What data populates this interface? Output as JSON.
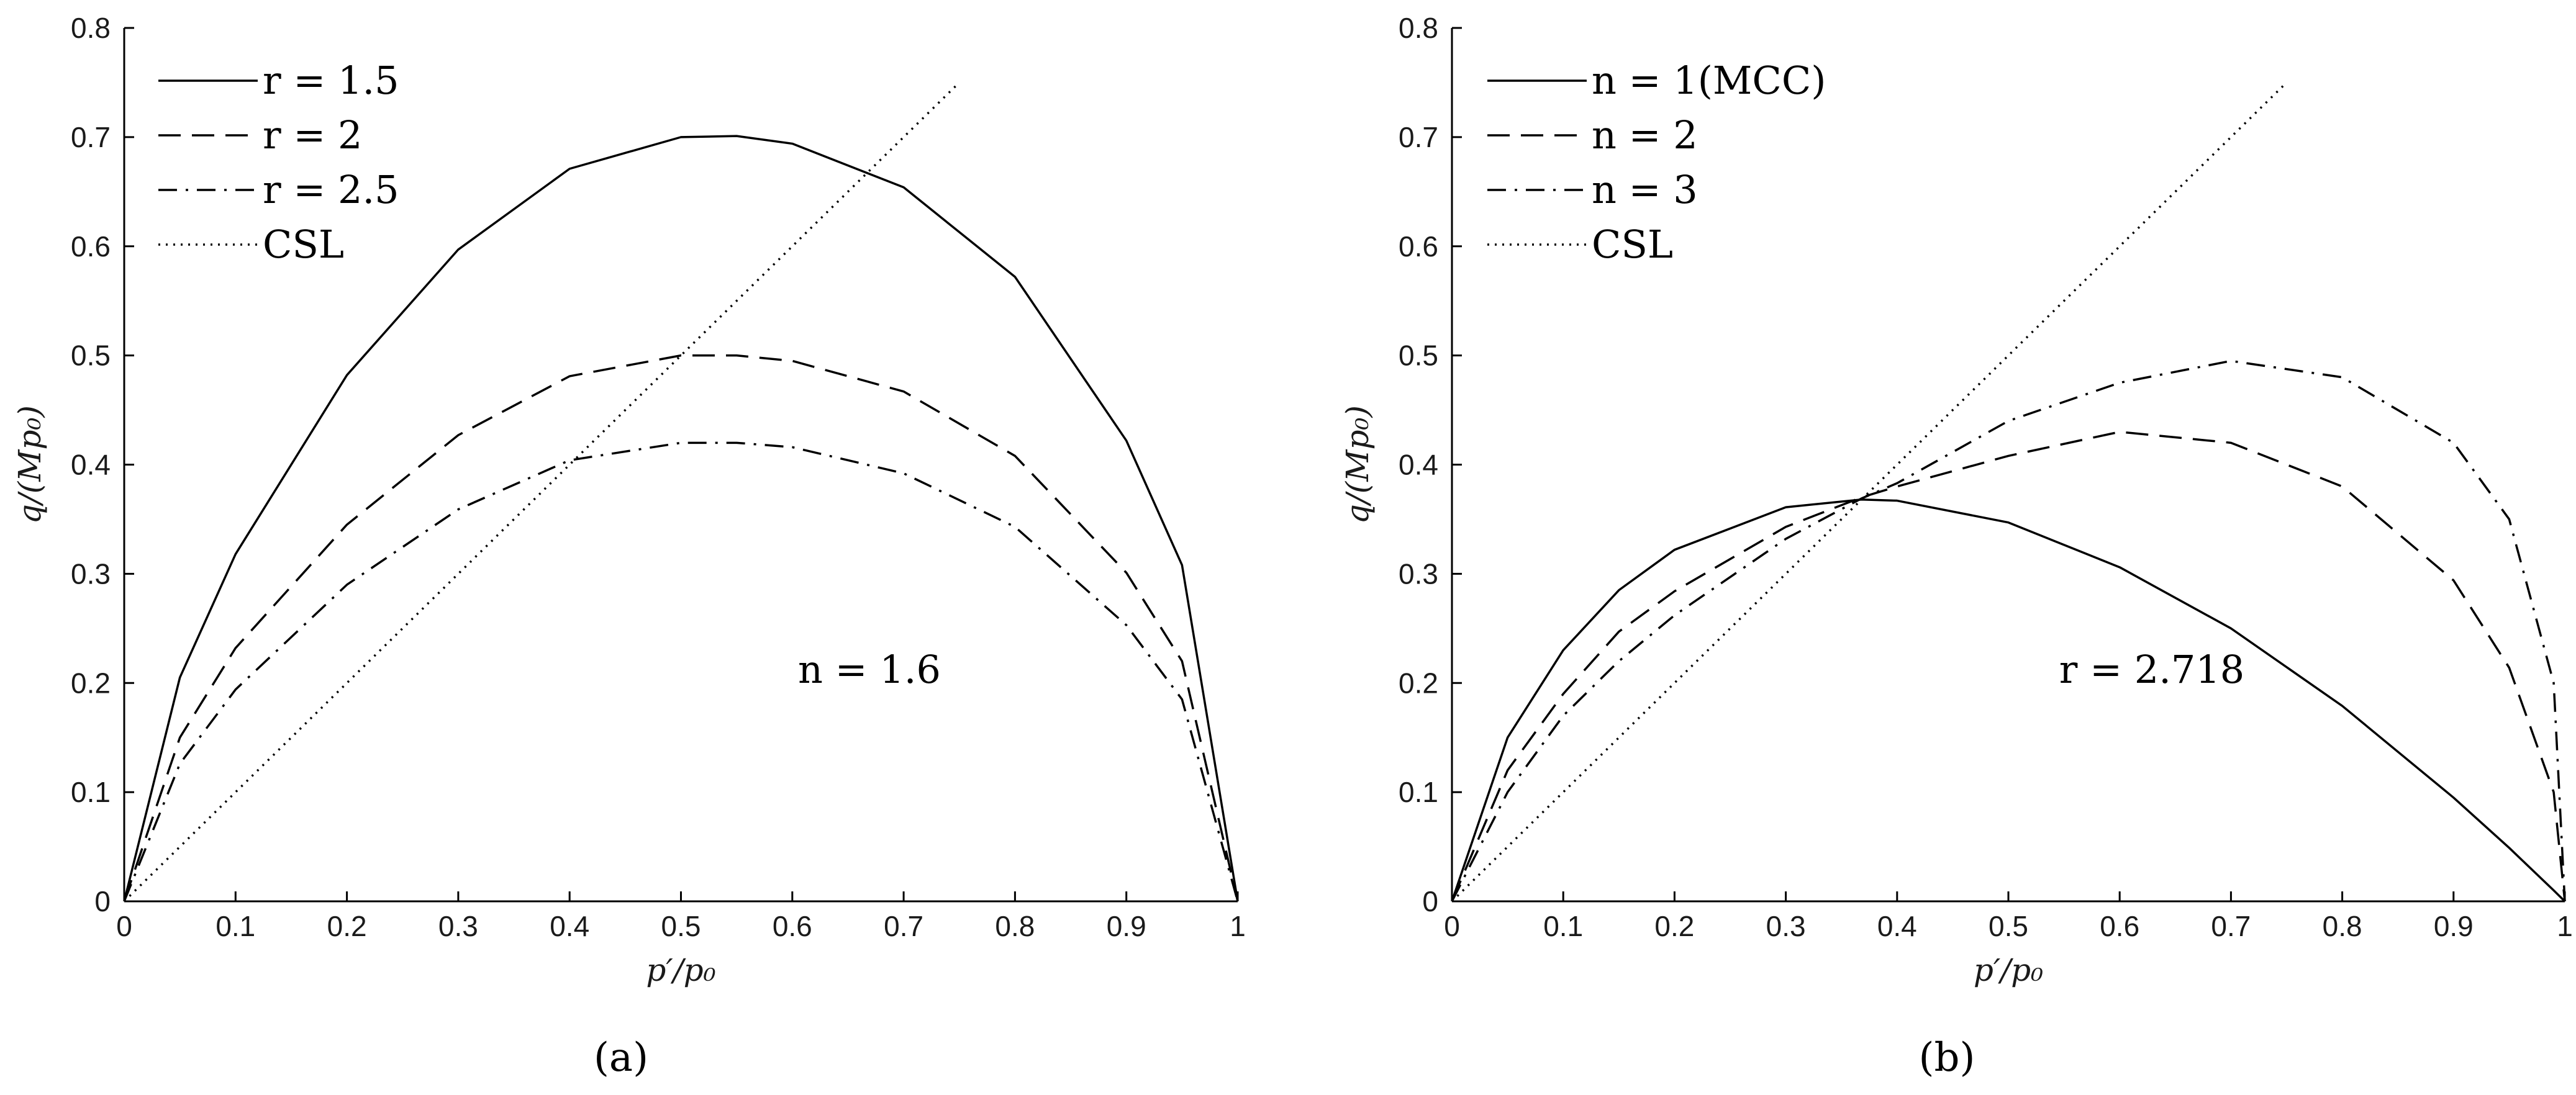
{
  "chart_data": [
    {
      "type": "line",
      "panel_label": "(a)",
      "xlabel": "p′/p₀",
      "ylabel": "q/(Mp₀)",
      "xlim": [
        0,
        1
      ],
      "ylim": [
        0,
        0.8
      ],
      "x_ticks": [
        "0",
        "0.1",
        "0.2",
        "0.3",
        "0.4",
        "0.5",
        "0.6",
        "0.7",
        "0.8",
        "0.9",
        "1"
      ],
      "y_ticks": [
        "0",
        "0.1",
        "0.2",
        "0.3",
        "0.4",
        "0.5",
        "0.6",
        "0.7",
        "0.8"
      ],
      "legend_position": "top-left",
      "annotation": "n = 1.6",
      "x": [
        0,
        0.05,
        0.1,
        0.2,
        0.3,
        0.4,
        0.5,
        0.55,
        0.6,
        0.7,
        0.8,
        0.9,
        0.95,
        1
      ],
      "series": [
        {
          "name": "r = 1.5",
          "style": "solid",
          "values": [
            0,
            0.205,
            0.318,
            0.482,
            0.597,
            0.671,
            0.7,
            0.701,
            0.694,
            0.654,
            0.572,
            0.422,
            0.308,
            0
          ]
        },
        {
          "name": "r = 2",
          "style": "dashed",
          "values": [
            0,
            0.15,
            0.232,
            0.345,
            0.427,
            0.481,
            0.5,
            0.5,
            0.495,
            0.467,
            0.408,
            0.301,
            0.22,
            0
          ]
        },
        {
          "name": "r = 2.5",
          "style": "dashdot",
          "values": [
            0,
            0.126,
            0.194,
            0.29,
            0.359,
            0.404,
            0.42,
            0.42,
            0.416,
            0.392,
            0.343,
            0.253,
            0.185,
            0
          ]
        },
        {
          "name": "CSL",
          "style": "dotted",
          "x": [
            0,
            0.75
          ],
          "values": [
            0,
            0.75
          ]
        }
      ]
    },
    {
      "type": "line",
      "panel_label": "(b)",
      "xlabel": "p′/p₀",
      "ylabel": "q/(Mp₀)",
      "xlim": [
        0,
        1
      ],
      "ylim": [
        0,
        0.8
      ],
      "x_ticks": [
        "0",
        "0.1",
        "0.2",
        "0.3",
        "0.4",
        "0.5",
        "0.6",
        "0.7",
        "0.8",
        "0.9",
        "1"
      ],
      "y_ticks": [
        "0",
        "0.1",
        "0.2",
        "0.3",
        "0.4",
        "0.5",
        "0.6",
        "0.7",
        "0.8"
      ],
      "legend_position": "top-left",
      "annotation": "r = 2.718",
      "x": [
        0,
        0.05,
        0.1,
        0.15,
        0.2,
        0.3,
        0.368,
        0.4,
        0.5,
        0.6,
        0.7,
        0.8,
        0.9,
        0.95,
        0.99,
        1
      ],
      "series": [
        {
          "name": "n = 1(MCC)",
          "style": "solid",
          "values": [
            0,
            0.15,
            0.23,
            0.285,
            0.322,
            0.361,
            0.368,
            0.367,
            0.347,
            0.306,
            0.25,
            0.179,
            0.095,
            0.049,
            0.01,
            0
          ]
        },
        {
          "name": "n = 2",
          "style": "dashed",
          "values": [
            0,
            0.12,
            0.19,
            0.247,
            0.284,
            0.343,
            0.37,
            0.38,
            0.408,
            0.43,
            0.42,
            0.38,
            0.294,
            0.214,
            0.1,
            0
          ]
        },
        {
          "name": "n = 3",
          "style": "dashdot",
          "values": [
            0,
            0.1,
            0.17,
            0.22,
            0.262,
            0.332,
            0.369,
            0.383,
            0.44,
            0.475,
            0.495,
            0.48,
            0.42,
            0.35,
            0.2,
            0
          ]
        },
        {
          "name": "CSL",
          "style": "dotted",
          "x": [
            0,
            0.75
          ],
          "values": [
            0,
            0.75
          ]
        }
      ]
    }
  ]
}
